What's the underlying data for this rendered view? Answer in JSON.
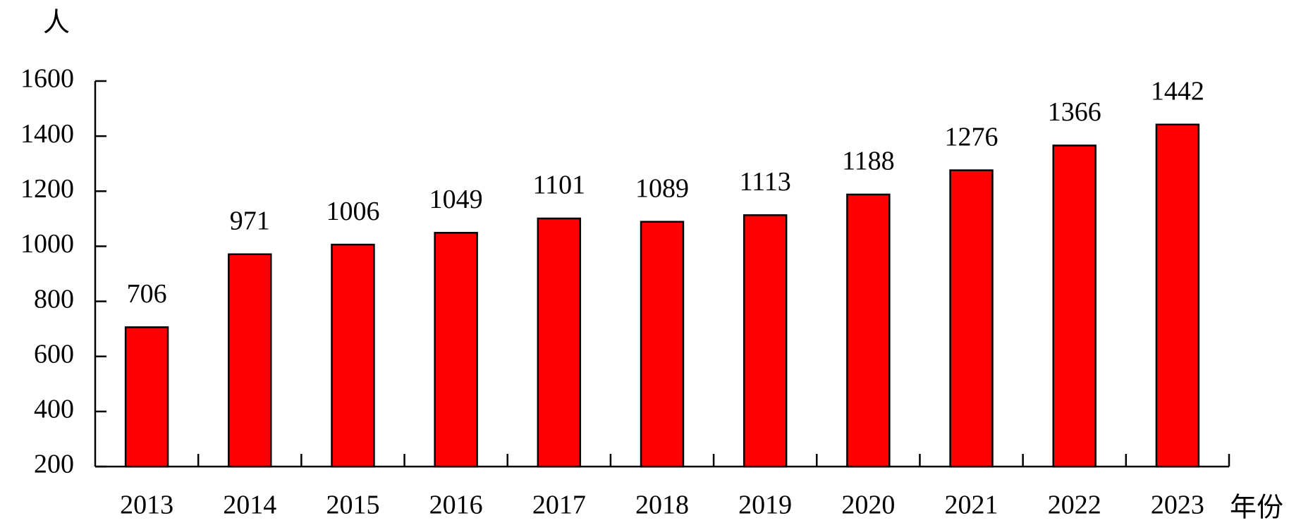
{
  "chart_data": {
    "type": "bar",
    "y_label": "人",
    "x_label": "年份",
    "categories": [
      "2013",
      "2014",
      "2015",
      "2016",
      "2017",
      "2018",
      "2019",
      "2020",
      "2021",
      "2022",
      "2023"
    ],
    "values": [
      706,
      971,
      1006,
      1049,
      1101,
      1089,
      1113,
      1188,
      1276,
      1366,
      1442
    ],
    "color": "#ff0000",
    "ylim": [
      200,
      1600
    ],
    "yticks": [
      200,
      400,
      600,
      800,
      1000,
      1200,
      1400,
      1600
    ],
    "grid": false
  }
}
